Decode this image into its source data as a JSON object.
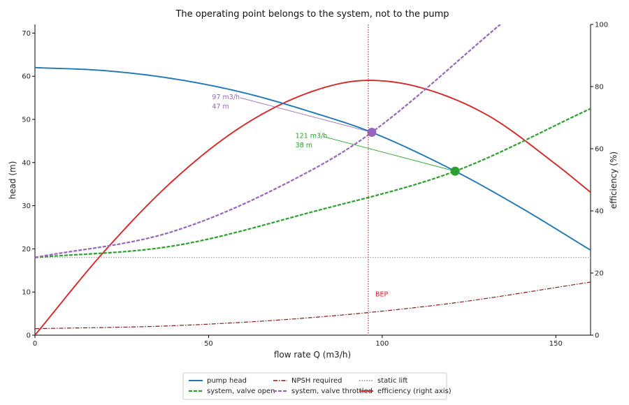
{
  "chart_data": {
    "type": "line",
    "title": "The operating point belongs to the system, not to the pump",
    "xlabel": "flow rate Q (m3/h)",
    "ylabel": "head (m)",
    "y2label": "efficiency (%)",
    "xlim": [
      0,
      160
    ],
    "ylim": [
      0,
      72
    ],
    "y2lim": [
      0,
      100
    ],
    "xticks": [
      0,
      50,
      100,
      150
    ],
    "yticks": [
      0,
      10,
      20,
      30,
      40,
      50,
      60,
      70
    ],
    "y2ticks": [
      0,
      20,
      40,
      60,
      80,
      100
    ],
    "grid": false,
    "legend_position": "bottom-center",
    "series": [
      {
        "name": "pump head",
        "axis": "left",
        "color": "#1f77b4",
        "style": "solid",
        "x": [
          0,
          20,
          40,
          60,
          80,
          97,
          121,
          140,
          160
        ],
        "y": [
          62,
          61.3,
          59.4,
          56.2,
          51.6,
          47,
          38,
          29.5,
          19.7
        ]
      },
      {
        "name": "NPSH required",
        "axis": "left",
        "color": "#7f1d1d",
        "style": "dashdot",
        "x": [
          0,
          40,
          80,
          120,
          160
        ],
        "y": [
          1.5,
          2.2,
          4.1,
          7.4,
          12.3
        ]
      },
      {
        "name": "static lift",
        "axis": "left",
        "color": "#888888",
        "style": "dotted",
        "x": [
          0,
          160
        ],
        "y": [
          18,
          18
        ]
      },
      {
        "name": "system, valve open",
        "axis": "left",
        "color": "#2ca02c",
        "style": "dashed",
        "x": [
          0,
          40,
          80,
          121,
          160
        ],
        "y": [
          18,
          20.7,
          28.6,
          38,
          52.5
        ]
      },
      {
        "name": "system, valve throttled",
        "axis": "left",
        "color": "#9467bd",
        "style": "dashed",
        "x": [
          0,
          40,
          80,
          97,
          134
        ],
        "y": [
          18,
          24.1,
          38.4,
          47,
          72
        ]
      },
      {
        "name": "efficiency (right axis)",
        "axis": "right",
        "color": "#d62728",
        "style": "solid",
        "x": [
          0,
          20,
          40,
          60,
          80,
          96,
          110,
          130,
          150,
          160
        ],
        "y": [
          0,
          27,
          50,
          67.5,
          78.5,
          82,
          80,
          71,
          55,
          46
        ]
      }
    ],
    "annotations": [
      {
        "kind": "point",
        "series": "system, valve throttled",
        "x": 97,
        "y": 47,
        "color": "#9467bd",
        "labels": [
          "97 m3/h",
          "47 m"
        ],
        "label_x": 51,
        "label_y": 56
      },
      {
        "kind": "point",
        "series": "system, valve open",
        "x": 121,
        "y": 38,
        "color": "#2ca02c",
        "labels": [
          "121 m3/h",
          "38 m"
        ],
        "label_x": 75,
        "label_y": 47
      },
      {
        "kind": "vline",
        "x": 96,
        "color": "#d62728",
        "label": "BEP",
        "label_y": 9
      }
    ]
  }
}
